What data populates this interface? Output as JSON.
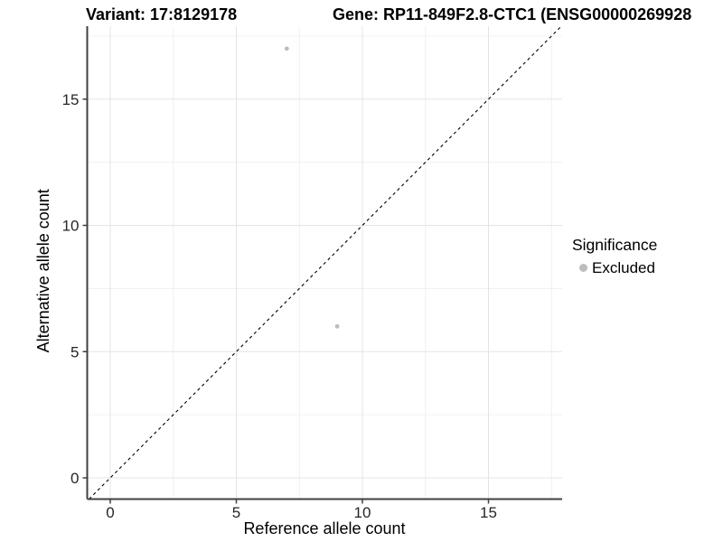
{
  "titles": {
    "variant": "Variant: 17:8129178",
    "gene": "Gene: RP11-849F2.8-CTC1 (ENSG00000269928"
  },
  "chart_data": {
    "type": "scatter",
    "title": "Variant: 17:8129178",
    "subtitle": "Gene: RP11-849F2.8-CTC1 (ENSG00000269928",
    "xlabel": "Reference allele count",
    "ylabel": "Alternative allele count",
    "xlim": [
      -0.93,
      17.95
    ],
    "ylim": [
      -0.84,
      17.9
    ],
    "x_ticks": [
      0,
      5,
      10,
      15
    ],
    "y_ticks": [
      0,
      5,
      10,
      15
    ],
    "x_minor_ticks": [
      2.5,
      7.5,
      12.5,
      17.5
    ],
    "y_minor_ticks": [
      2.5,
      7.5,
      12.5,
      17.5
    ],
    "grid": true,
    "series": [
      {
        "name": "Excluded",
        "marker_color": "#bdbdbd",
        "points": [
          {
            "x": 7,
            "y": 17
          },
          {
            "x": 9,
            "y": 6
          }
        ]
      }
    ],
    "reference_line": {
      "kind": "identity y=x",
      "style": "dashed",
      "color": "#000000"
    },
    "legend": {
      "title": "Significance",
      "position": "right",
      "entries": [
        {
          "label": "Excluded",
          "marker_color": "#bdbdbd"
        }
      ]
    },
    "colors": {
      "axis_line": "#404040",
      "tick_text": "#262626",
      "grid_major": "#e4e4e4",
      "grid_minor": "#f0f0f0",
      "background": "#ffffff"
    }
  }
}
